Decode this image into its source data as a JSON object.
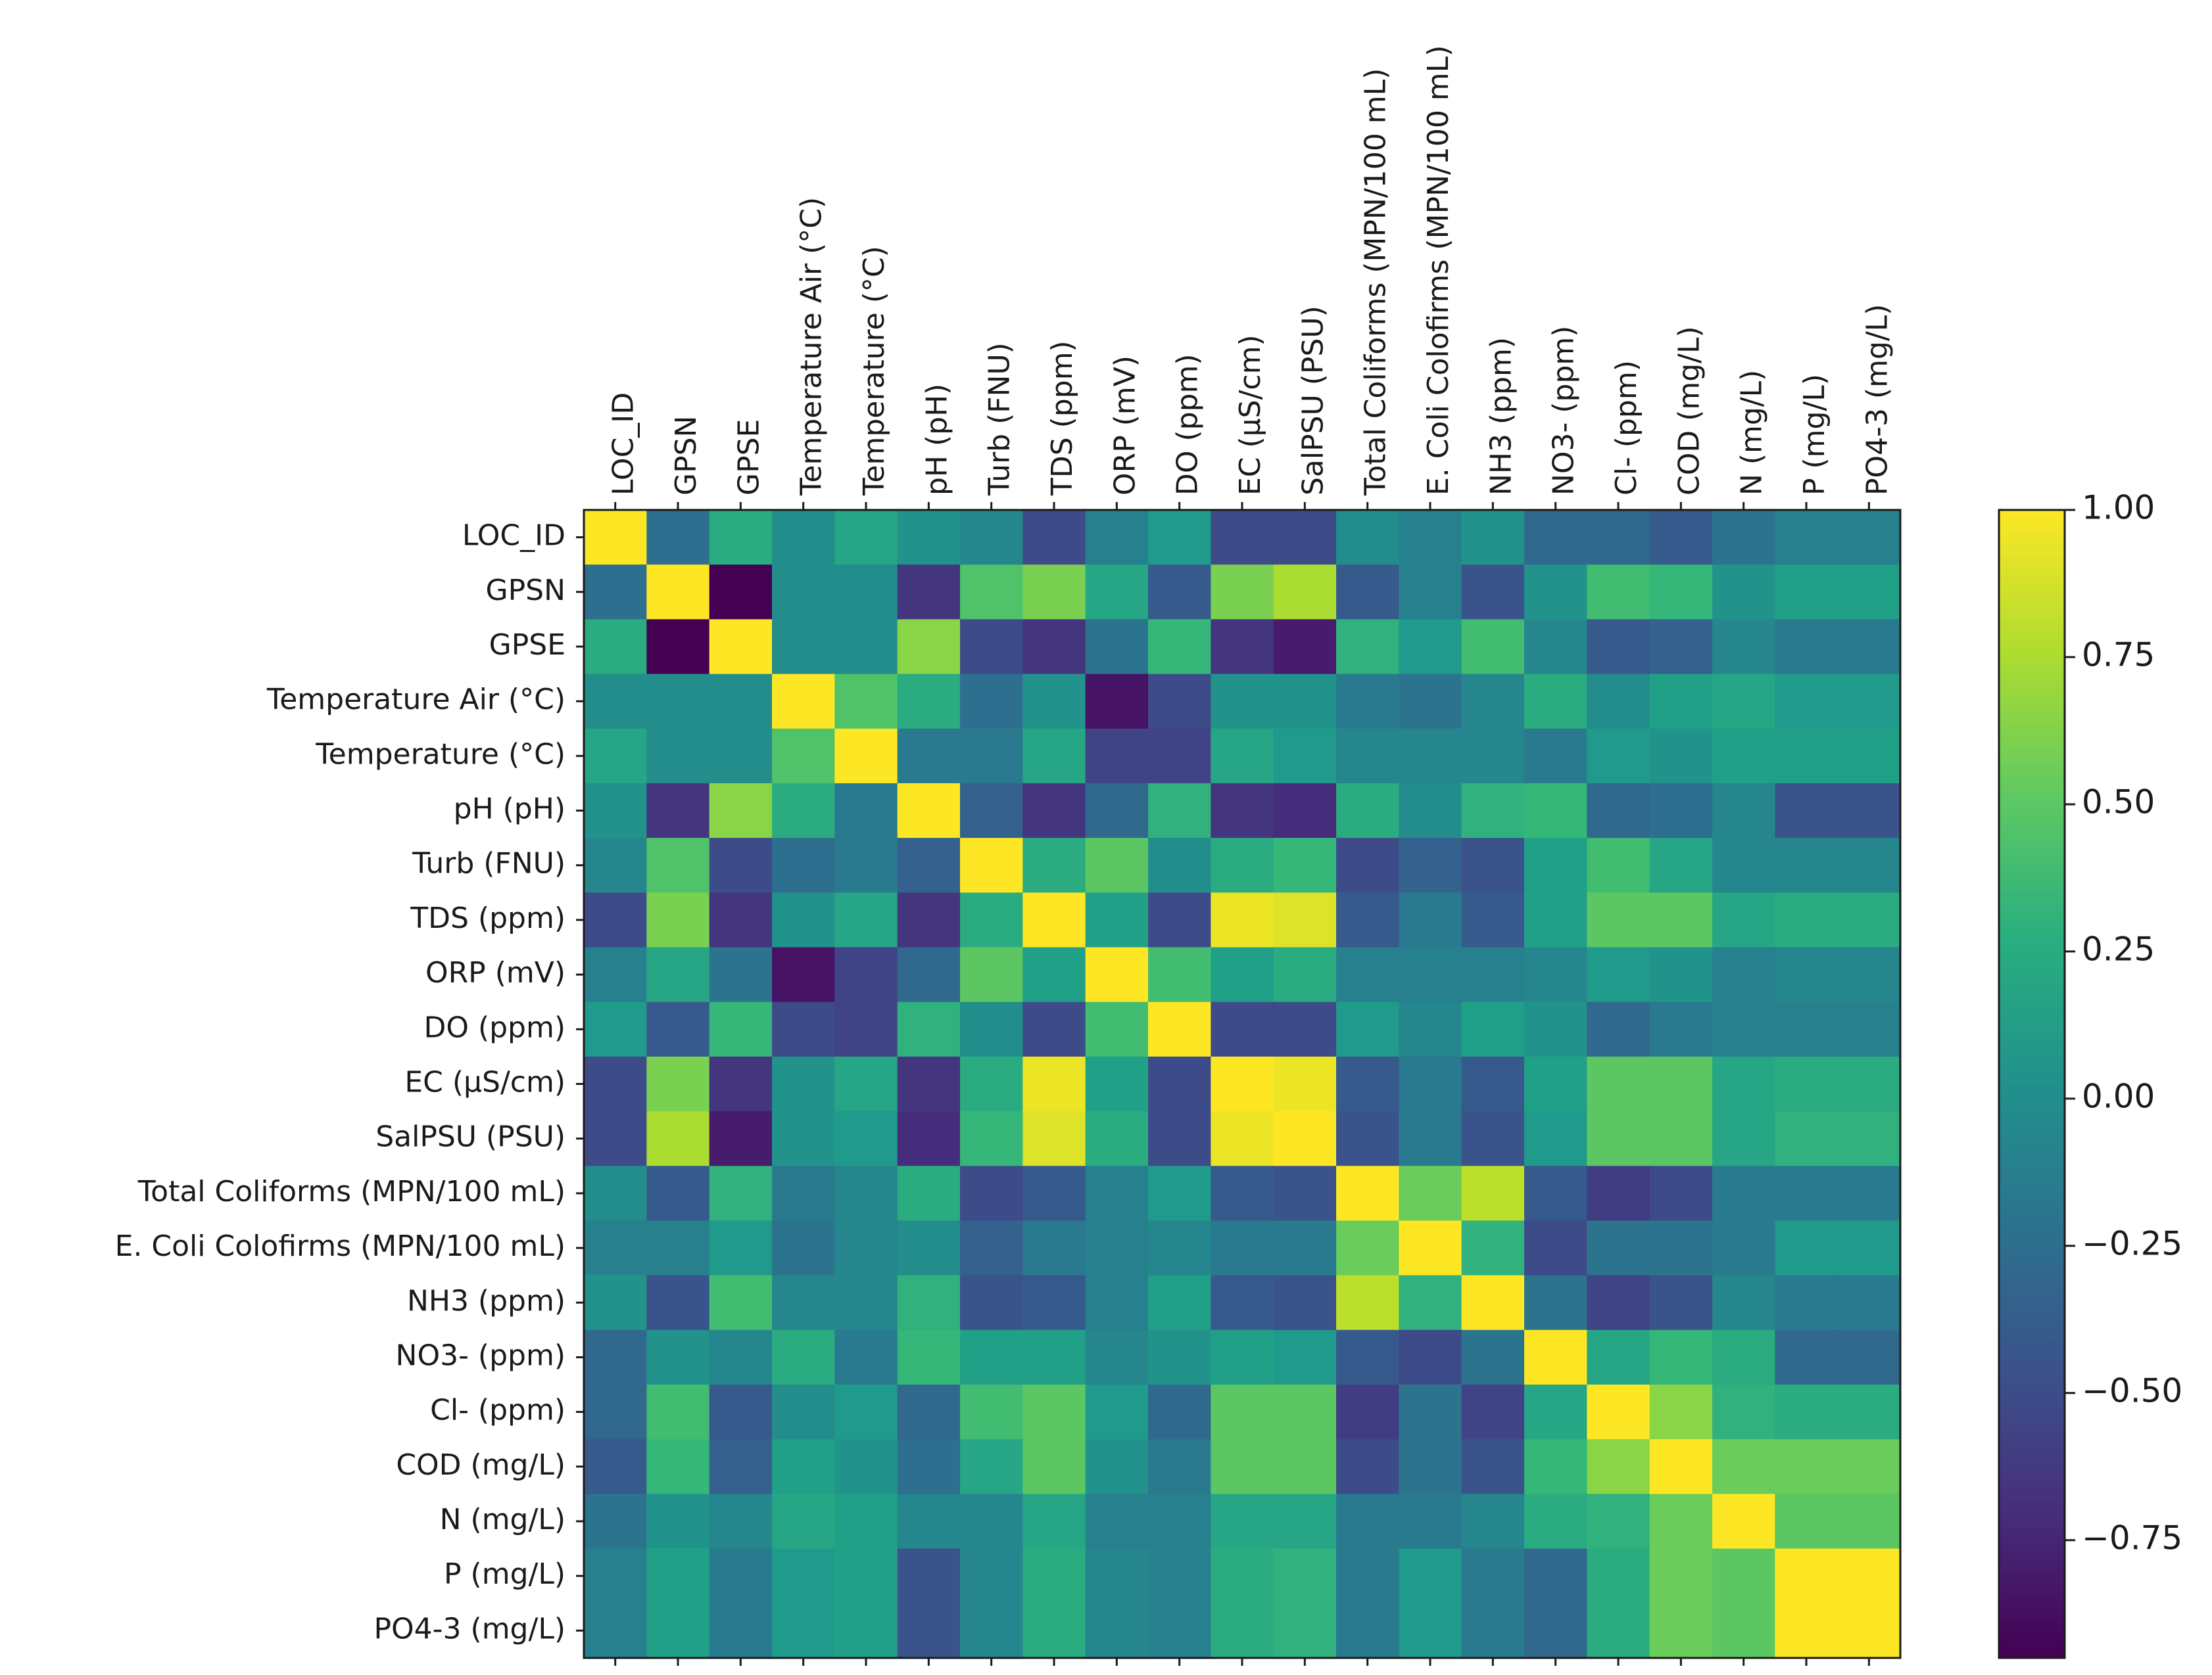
{
  "chart_data": {
    "type": "heatmap",
    "title": "",
    "xlabel": "",
    "ylabel": "",
    "colormap": "viridis",
    "labels": [
      "LOC_ID",
      "GPSN",
      "GPSE",
      "Temperature Air (°C)",
      "Temperature (°C)",
      "pH (pH)",
      "Turb (FNU)",
      "TDS (ppm)",
      "ORP (mV)",
      "DO (ppm)",
      "EC (µS/cm)",
      "SalPSU (PSU)",
      "Total Coliforms (MPN/100 mL)",
      "E. Coli Colofirms (MPN/100 mL)",
      "NH3 (ppm)",
      "NO3- (ppm)",
      "Cl- (ppm)",
      "COD (mg/L)",
      "N (mg/L)",
      "P  (mg/L)",
      "PO4-3 (mg/L)"
    ],
    "matrix": [
      [
        1.0,
        -0.25,
        0.25,
        0.0,
        0.2,
        0.05,
        -0.05,
        -0.5,
        -0.1,
        0.1,
        -0.5,
        -0.5,
        0.0,
        -0.1,
        0.05,
        -0.3,
        -0.3,
        -0.4,
        -0.2,
        -0.1,
        -0.1
      ],
      [
        -0.25,
        1.0,
        -0.95,
        0.0,
        0.0,
        -0.65,
        0.45,
        0.6,
        0.2,
        -0.4,
        0.6,
        0.75,
        -0.4,
        -0.1,
        -0.45,
        0.05,
        0.4,
        0.35,
        0.05,
        0.15,
        0.15
      ],
      [
        0.25,
        -0.95,
        1.0,
        0.0,
        0.0,
        0.65,
        -0.5,
        -0.65,
        -0.2,
        0.35,
        -0.65,
        -0.8,
        0.3,
        0.1,
        0.4,
        -0.05,
        -0.4,
        -0.35,
        -0.05,
        -0.15,
        -0.15
      ],
      [
        0.0,
        0.0,
        0.0,
        1.0,
        0.45,
        0.25,
        -0.25,
        0.05,
        -0.85,
        -0.5,
        0.05,
        0.05,
        -0.15,
        -0.2,
        -0.05,
        0.25,
        0.0,
        0.15,
        0.2,
        0.1,
        0.1
      ],
      [
        0.2,
        0.0,
        0.0,
        0.45,
        1.0,
        -0.15,
        -0.15,
        0.2,
        -0.55,
        -0.55,
        0.2,
        0.1,
        -0.05,
        -0.05,
        -0.05,
        -0.15,
        0.1,
        0.05,
        0.15,
        0.15,
        0.15
      ],
      [
        0.05,
        -0.65,
        0.65,
        0.25,
        -0.15,
        1.0,
        -0.35,
        -0.65,
        -0.3,
        0.3,
        -0.65,
        -0.7,
        0.25,
        0.0,
        0.3,
        0.35,
        -0.3,
        -0.25,
        -0.05,
        -0.45,
        -0.45
      ],
      [
        -0.05,
        0.45,
        -0.5,
        -0.25,
        -0.15,
        -0.35,
        1.0,
        0.25,
        0.5,
        0.0,
        0.25,
        0.35,
        -0.5,
        -0.35,
        -0.45,
        0.15,
        0.4,
        0.2,
        -0.05,
        -0.05,
        -0.05
      ],
      [
        -0.5,
        0.6,
        -0.65,
        0.05,
        0.2,
        -0.65,
        0.25,
        1.0,
        0.15,
        -0.5,
        0.95,
        0.9,
        -0.4,
        -0.15,
        -0.4,
        0.15,
        0.5,
        0.5,
        0.2,
        0.25,
        0.25
      ],
      [
        -0.1,
        0.2,
        -0.2,
        -0.85,
        -0.55,
        -0.3,
        0.5,
        0.15,
        1.0,
        0.4,
        0.15,
        0.25,
        -0.1,
        -0.1,
        -0.1,
        -0.05,
        0.1,
        0.05,
        -0.1,
        -0.05,
        -0.05
      ],
      [
        0.1,
        -0.4,
        0.35,
        -0.5,
        -0.55,
        0.3,
        0.0,
        -0.5,
        0.4,
        1.0,
        -0.5,
        -0.5,
        0.1,
        -0.05,
        0.15,
        0.05,
        -0.3,
        -0.15,
        -0.1,
        -0.1,
        -0.1
      ],
      [
        -0.5,
        0.6,
        -0.65,
        0.05,
        0.2,
        -0.65,
        0.25,
        0.95,
        0.15,
        -0.5,
        1.0,
        0.95,
        -0.4,
        -0.15,
        -0.4,
        0.15,
        0.5,
        0.5,
        0.2,
        0.25,
        0.25
      ],
      [
        -0.5,
        0.75,
        -0.8,
        0.05,
        0.1,
        -0.7,
        0.35,
        0.9,
        0.25,
        -0.5,
        0.95,
        1.0,
        -0.45,
        -0.15,
        -0.45,
        0.1,
        0.5,
        0.5,
        0.2,
        0.3,
        0.3
      ],
      [
        0.0,
        -0.4,
        0.3,
        -0.15,
        -0.05,
        0.25,
        -0.5,
        -0.4,
        -0.1,
        0.1,
        -0.4,
        -0.45,
        1.0,
        0.55,
        0.8,
        -0.4,
        -0.6,
        -0.5,
        -0.15,
        -0.15,
        -0.15
      ],
      [
        -0.1,
        -0.1,
        0.1,
        -0.2,
        -0.05,
        0.0,
        -0.35,
        -0.15,
        -0.1,
        -0.05,
        -0.15,
        -0.15,
        0.55,
        1.0,
        0.3,
        -0.5,
        -0.2,
        -0.2,
        -0.15,
        0.1,
        0.1
      ],
      [
        0.05,
        -0.45,
        0.4,
        -0.05,
        -0.05,
        0.3,
        -0.45,
        -0.4,
        -0.1,
        0.15,
        -0.4,
        -0.45,
        0.8,
        0.3,
        1.0,
        -0.2,
        -0.55,
        -0.45,
        -0.05,
        -0.15,
        -0.15
      ],
      [
        -0.3,
        0.05,
        -0.05,
        0.25,
        -0.15,
        0.35,
        0.15,
        0.15,
        -0.05,
        0.05,
        0.15,
        0.1,
        -0.4,
        -0.5,
        -0.2,
        1.0,
        0.2,
        0.35,
        0.25,
        -0.3,
        -0.3
      ],
      [
        -0.3,
        0.4,
        -0.4,
        0.0,
        0.1,
        -0.3,
        0.4,
        0.5,
        0.1,
        -0.3,
        0.5,
        0.5,
        -0.6,
        -0.2,
        -0.55,
        0.2,
        1.0,
        0.65,
        0.3,
        0.25,
        0.25
      ],
      [
        -0.4,
        0.35,
        -0.35,
        0.15,
        0.05,
        -0.25,
        0.2,
        0.5,
        0.05,
        -0.15,
        0.5,
        0.5,
        -0.5,
        -0.2,
        -0.45,
        0.35,
        0.65,
        1.0,
        0.55,
        0.55,
        0.55
      ],
      [
        -0.2,
        0.05,
        -0.05,
        0.2,
        0.15,
        -0.05,
        -0.05,
        0.2,
        -0.1,
        -0.1,
        0.2,
        0.2,
        -0.15,
        -0.15,
        -0.05,
        0.25,
        0.3,
        0.55,
        1.0,
        0.5,
        0.5
      ],
      [
        -0.1,
        0.15,
        -0.15,
        0.1,
        0.15,
        -0.45,
        -0.05,
        0.25,
        -0.05,
        -0.1,
        0.25,
        0.3,
        -0.15,
        0.1,
        -0.15,
        -0.3,
        0.25,
        0.55,
        0.5,
        1.0,
        1.0
      ],
      [
        -0.1,
        0.15,
        -0.15,
        0.1,
        0.15,
        -0.45,
        -0.05,
        0.25,
        -0.05,
        -0.1,
        0.25,
        0.3,
        -0.15,
        0.1,
        -0.15,
        -0.3,
        0.25,
        0.55,
        0.5,
        1.0,
        1.0
      ]
    ],
    "colorbar": {
      "min": -0.95,
      "max": 1.0,
      "ticks": [
        1.0,
        0.75,
        0.5,
        0.25,
        0.0,
        -0.25,
        -0.5,
        -0.75
      ],
      "tick_labels": [
        "1.00",
        "0.75",
        "0.50",
        "0.25",
        "0.00",
        "−0.25",
        "−0.50",
        "−0.75"
      ]
    },
    "grid": false,
    "legend": "colorbar right"
  }
}
